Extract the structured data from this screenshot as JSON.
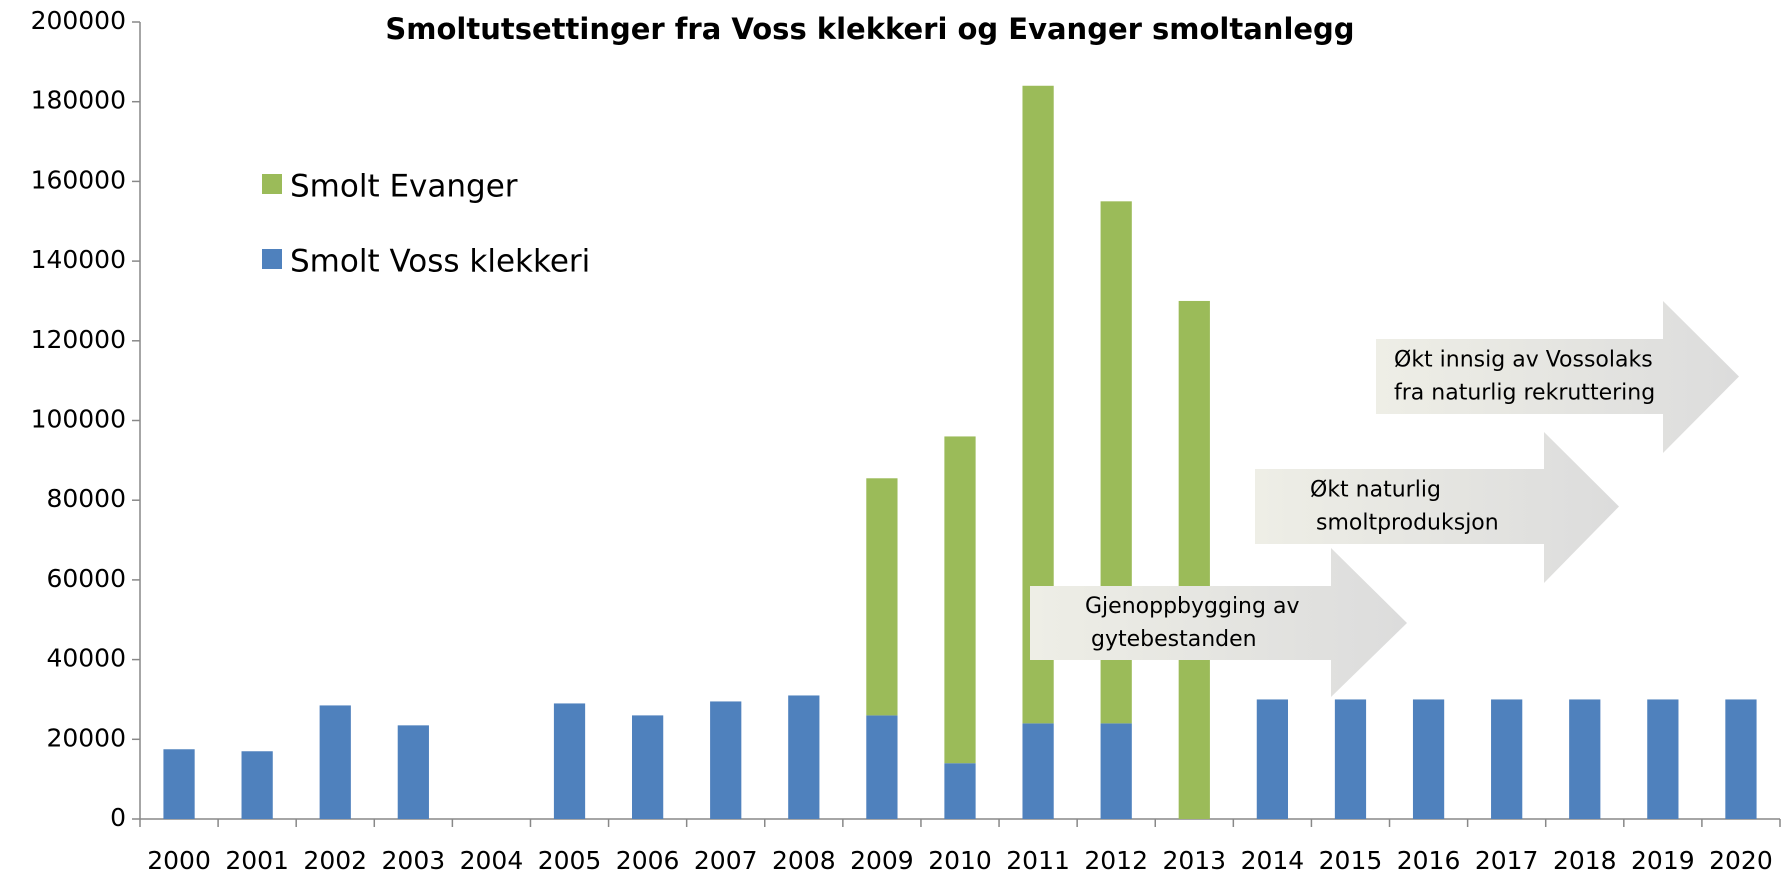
{
  "chart_data": {
    "type": "stacked_bar",
    "title": "Smoltutsettinger fra Voss klekkeri og Evanger smoltanlegg",
    "categories": [
      "2000",
      "2001",
      "2002",
      "2003",
      "2004",
      "2005",
      "2006",
      "2007",
      "2008",
      "2009",
      "2010",
      "2011",
      "2012",
      "2013",
      "2014",
      "2015",
      "2016",
      "2017",
      "2018",
      "2019",
      "2020"
    ],
    "series": [
      {
        "name": "Smolt Voss klekkeri",
        "color": "#4f81bd",
        "values": [
          17500,
          17000,
          28500,
          23500,
          null,
          29000,
          26000,
          29500,
          31000,
          26000,
          14000,
          24000,
          24000,
          null,
          30000,
          30000,
          30000,
          30000,
          30000,
          30000,
          30000
        ]
      },
      {
        "name": "Smolt Evanger",
        "color": "#9bbb59",
        "values": [
          null,
          null,
          null,
          null,
          null,
          null,
          null,
          null,
          null,
          59500,
          82000,
          160000,
          131000,
          130000,
          null,
          null,
          null,
          null,
          null,
          null,
          null
        ]
      }
    ],
    "ylim": [
      0,
      200000
    ],
    "yticks": [
      0,
      20000,
      40000,
      60000,
      80000,
      100000,
      120000,
      140000,
      160000,
      180000,
      200000
    ],
    "annotations": [
      {
        "lines": [
          "Gjenoppbygging av",
          "gytebestanden"
        ]
      },
      {
        "lines": [
          "Økt naturlig",
          "smoltproduksjon"
        ]
      },
      {
        "lines": [
          "Økt innsig av Vossolaks",
          "fra naturlig rekruttering"
        ]
      }
    ]
  }
}
